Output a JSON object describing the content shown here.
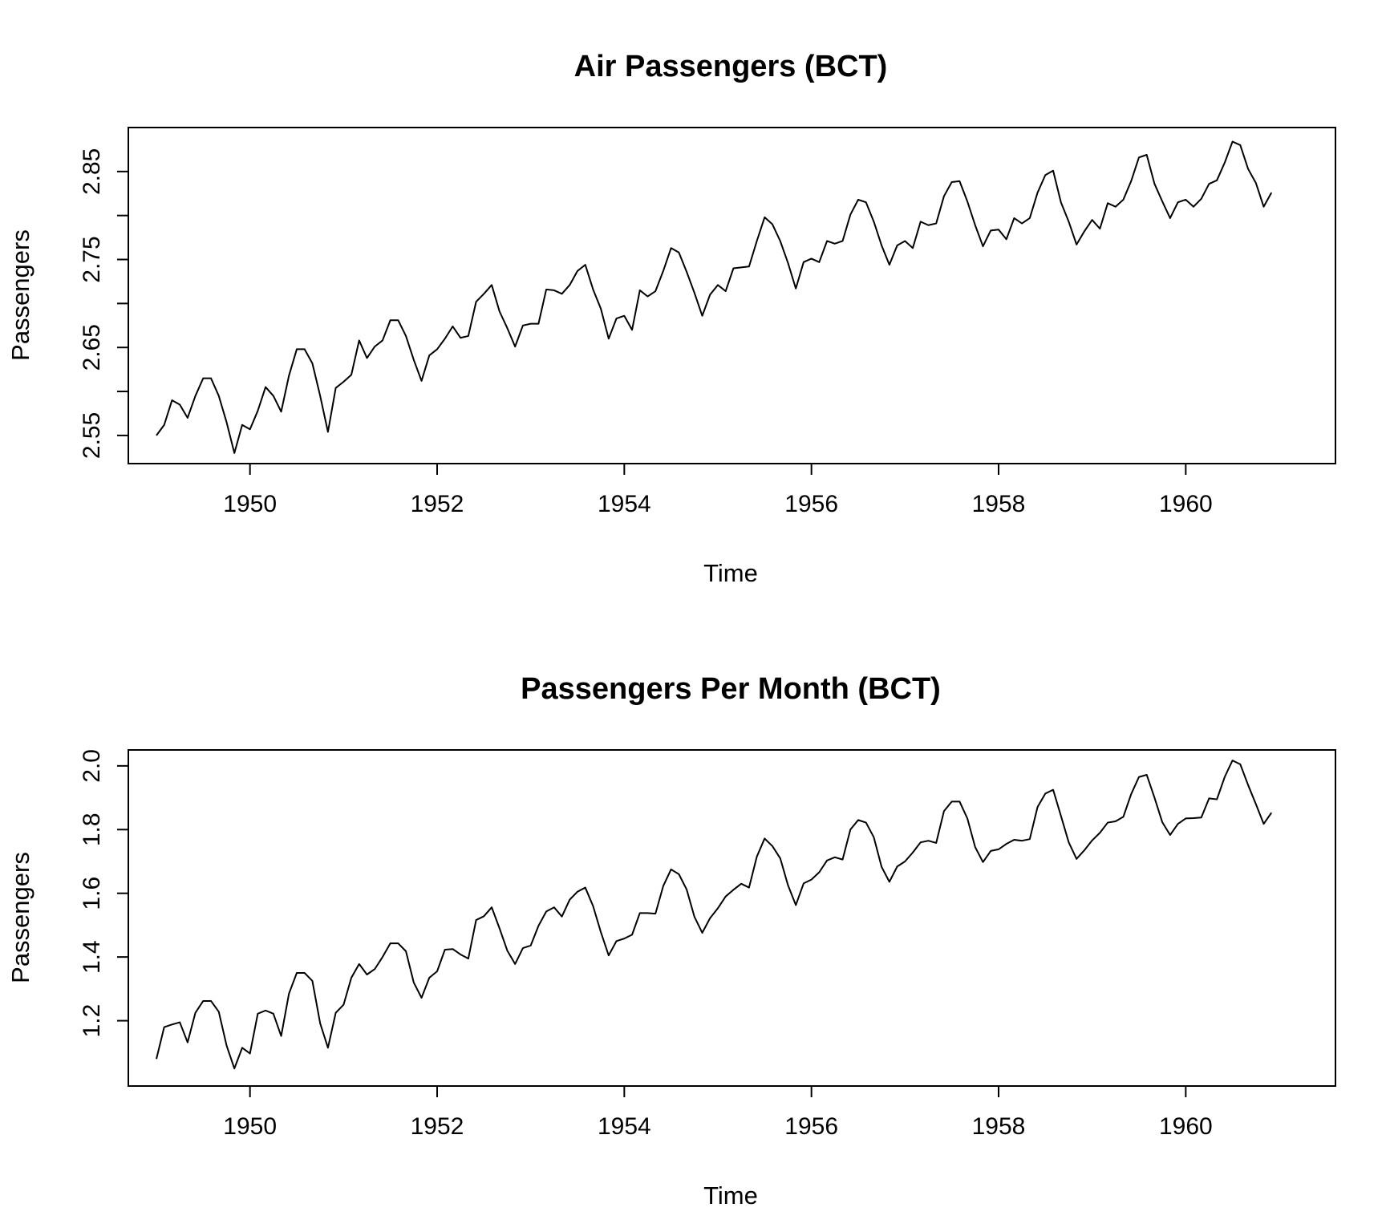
{
  "chart_data": [
    {
      "type": "line",
      "title": "Air Passengers (BCT)",
      "xlabel": "Time",
      "ylabel": "Passengers",
      "xlim": [
        1948.7,
        1961.6
      ],
      "ylim": [
        2.518,
        2.9
      ],
      "x_ticks": [
        1950,
        1952,
        1954,
        1956,
        1958,
        1960
      ],
      "y_ticks": [
        2.55,
        2.6,
        2.65,
        2.7,
        2.75,
        2.8,
        2.85
      ],
      "y_tick_labels": [
        "2.55",
        "",
        "2.65",
        "",
        "2.75",
        "",
        "2.85"
      ],
      "x_start": 1949.0,
      "x_step": 0.08333,
      "grid": false,
      "series": [
        {
          "color": "#000000",
          "values": [
            2.55,
            2.562,
            2.59,
            2.585,
            2.57,
            2.595,
            2.615,
            2.615,
            2.595,
            2.565,
            2.53,
            2.562,
            2.557,
            2.578,
            2.605,
            2.595,
            2.577,
            2.618,
            2.648,
            2.648,
            2.632,
            2.595,
            2.554,
            2.604,
            2.611,
            2.619,
            2.658,
            2.638,
            2.651,
            2.658,
            2.681,
            2.681,
            2.663,
            2.636,
            2.612,
            2.641,
            2.648,
            2.66,
            2.674,
            2.661,
            2.663,
            2.702,
            2.711,
            2.721,
            2.691,
            2.672,
            2.651,
            2.675,
            2.677,
            2.677,
            2.716,
            2.715,
            2.711,
            2.721,
            2.737,
            2.744,
            2.716,
            2.694,
            2.66,
            2.683,
            2.686,
            2.67,
            2.715,
            2.708,
            2.714,
            2.737,
            2.763,
            2.758,
            2.736,
            2.712,
            2.686,
            2.71,
            2.721,
            2.714,
            2.74,
            2.741,
            2.742,
            2.771,
            2.798,
            2.79,
            2.771,
            2.746,
            2.717,
            2.747,
            2.751,
            2.747,
            2.771,
            2.768,
            2.771,
            2.801,
            2.818,
            2.815,
            2.793,
            2.766,
            2.744,
            2.766,
            2.771,
            2.763,
            2.793,
            2.789,
            2.791,
            2.822,
            2.838,
            2.839,
            2.816,
            2.789,
            2.765,
            2.783,
            2.784,
            2.773,
            2.797,
            2.791,
            2.797,
            2.826,
            2.846,
            2.851,
            2.815,
            2.793,
            2.767,
            2.782,
            2.795,
            2.785,
            2.814,
            2.81,
            2.818,
            2.839,
            2.866,
            2.869,
            2.836,
            2.816,
            2.797,
            2.815,
            2.818,
            2.81,
            2.819,
            2.836,
            2.84,
            2.86,
            2.884,
            2.88,
            2.853,
            2.837,
            2.81,
            2.826
          ]
        }
      ]
    },
    {
      "type": "line",
      "title": "Passengers Per Month (BCT)",
      "xlabel": "Time",
      "ylabel": "Passengers",
      "xlim": [
        1948.7,
        1961.6
      ],
      "ylim": [
        0.995,
        2.05
      ],
      "x_ticks": [
        1950,
        1952,
        1954,
        1956,
        1958,
        1960
      ],
      "y_ticks": [
        1.2,
        1.4,
        1.6,
        1.8,
        2.0
      ],
      "y_tick_labels": [
        "1.2",
        "1.4",
        "1.6",
        "1.8",
        "2.0"
      ],
      "x_start": 1949.0,
      "x_step": 0.08333,
      "grid": false,
      "series": [
        {
          "color": "#000000",
          "values": [
            1.08,
            1.18,
            1.188,
            1.195,
            1.132,
            1.225,
            1.262,
            1.262,
            1.228,
            1.122,
            1.05,
            1.115,
            1.097,
            1.222,
            1.232,
            1.222,
            1.152,
            1.285,
            1.35,
            1.35,
            1.325,
            1.192,
            1.115,
            1.225,
            1.25,
            1.335,
            1.378,
            1.345,
            1.362,
            1.4,
            1.443,
            1.443,
            1.418,
            1.32,
            1.272,
            1.335,
            1.355,
            1.423,
            1.425,
            1.408,
            1.395,
            1.516,
            1.528,
            1.556,
            1.49,
            1.42,
            1.378,
            1.428,
            1.436,
            1.498,
            1.543,
            1.556,
            1.527,
            1.58,
            1.605,
            1.618,
            1.56,
            1.478,
            1.405,
            1.45,
            1.458,
            1.47,
            1.538,
            1.538,
            1.536,
            1.623,
            1.675,
            1.66,
            1.612,
            1.526,
            1.476,
            1.522,
            1.553,
            1.59,
            1.611,
            1.63,
            1.618,
            1.715,
            1.772,
            1.748,
            1.71,
            1.625,
            1.563,
            1.631,
            1.643,
            1.666,
            1.703,
            1.713,
            1.706,
            1.8,
            1.83,
            1.822,
            1.776,
            1.683,
            1.636,
            1.684,
            1.7,
            1.728,
            1.76,
            1.765,
            1.758,
            1.858,
            1.888,
            1.888,
            1.835,
            1.745,
            1.698,
            1.733,
            1.738,
            1.755,
            1.768,
            1.765,
            1.77,
            1.871,
            1.913,
            1.925,
            1.843,
            1.76,
            1.708,
            1.735,
            1.766,
            1.79,
            1.822,
            1.826,
            1.84,
            1.911,
            1.965,
            1.972,
            1.9,
            1.823,
            1.783,
            1.818,
            1.835,
            1.836,
            1.838,
            1.898,
            1.895,
            1.965,
            2.017,
            2.005,
            1.94,
            1.88,
            1.818,
            1.853
          ]
        }
      ]
    }
  ]
}
